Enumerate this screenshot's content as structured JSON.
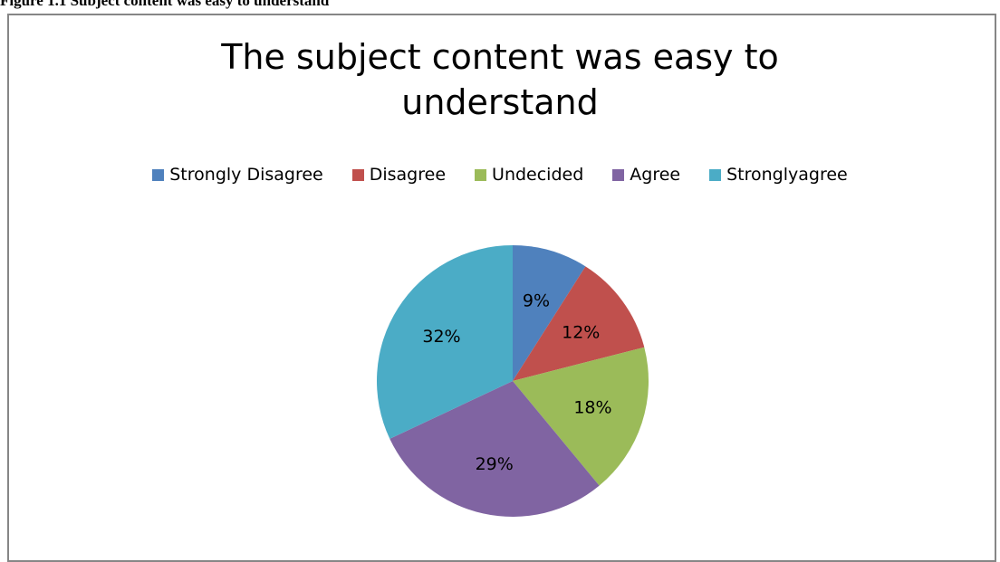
{
  "figure_caption": "Figure 1.1 Subject content was easy to understand",
  "chart_data": {
    "type": "pie",
    "title_lines": [
      "The subject content was easy to",
      "understand"
    ],
    "categories": [
      "Strongly Disagree",
      "Disagree",
      "Undecided",
      "Agree",
      "Stronglyagree"
    ],
    "values": [
      9,
      12,
      18,
      29,
      32
    ],
    "labels": [
      "9%",
      "12%",
      "18%",
      "29%",
      "32%"
    ],
    "colors": [
      "#4F81BD",
      "#C0504D",
      "#9BBB59",
      "#8064A2",
      "#4BACC6"
    ],
    "legend_position": "top"
  }
}
